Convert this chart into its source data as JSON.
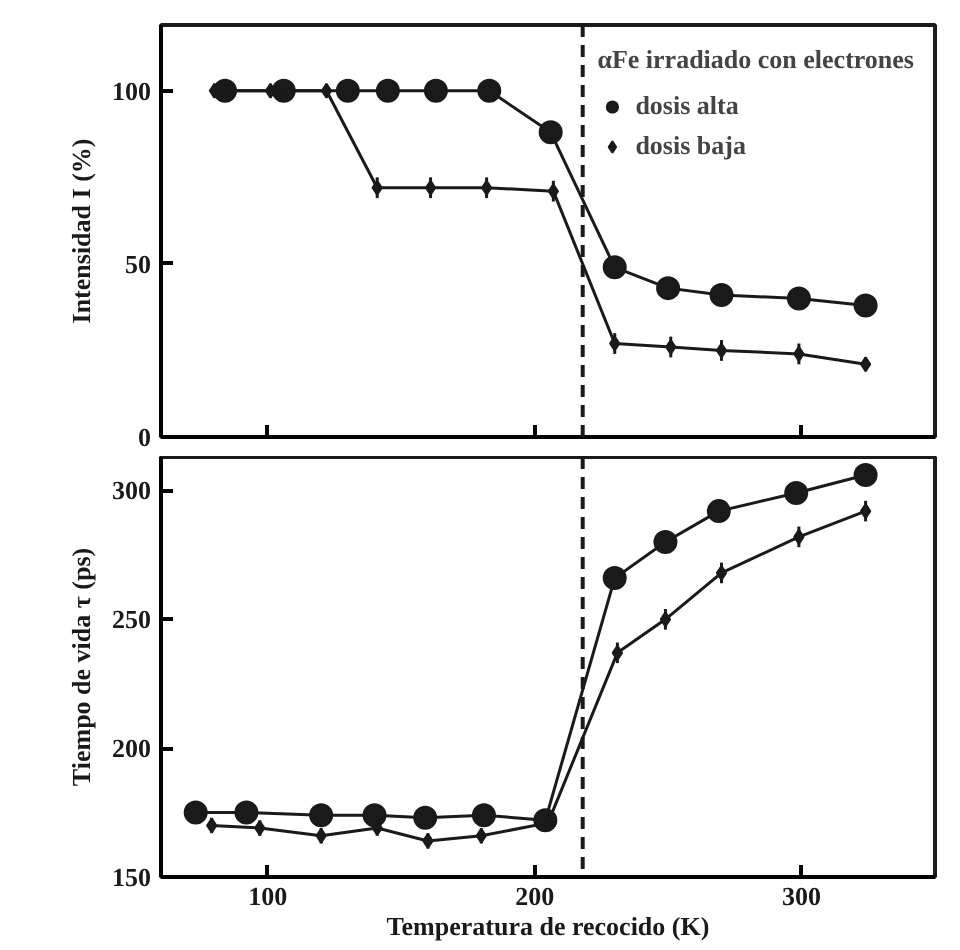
{
  "chart_data": [
    {
      "type": "line",
      "ylabel": "Intensidad I (%)",
      "legend_title": "αFe irradiado con electrones",
      "legend": "top right",
      "tick_labels": "y",
      "line_style": "solid",
      "grid": false,
      "xlim": [
        60,
        350
      ],
      "xticks": [
        {
          "value": 100,
          "label": null
        },
        {
          "value": 200,
          "label": null
        },
        {
          "value": 300,
          "label": null
        }
      ],
      "ylim": [
        0,
        119
      ],
      "yticks": [
        0,
        50,
        100
      ],
      "ref_lines": [
        {
          "axis": "x",
          "value": 218,
          "line_style": "dashed",
          "color": "#1a1a1a"
        }
      ],
      "series": [
        {
          "name": "dosis alta",
          "color": "#1a1a1a",
          "marker": "circle",
          "x": [
            84,
            106,
            130,
            145,
            163,
            183,
            206,
            230,
            250,
            270,
            299,
            324
          ],
          "values": [
            100,
            100,
            100,
            100,
            100,
            100,
            88,
            49,
            43,
            41,
            40,
            38
          ]
        },
        {
          "name": "dosis baja",
          "color": "#1a1a1a",
          "marker": "diamond",
          "x": [
            80,
            101,
            122,
            141,
            161,
            182,
            207,
            230,
            251,
            270,
            299,
            324
          ],
          "values": [
            100,
            100,
            100,
            72,
            72,
            72,
            71,
            27,
            26,
            25,
            24,
            21
          ],
          "errors": [
            2,
            2,
            2,
            3,
            3,
            3,
            3,
            3,
            3,
            3,
            3,
            2
          ]
        }
      ]
    },
    {
      "type": "line",
      "xlabel": "Temperatura de recocido (K)",
      "ylabel": "Tiempo de vida τ (ps)",
      "legend": false,
      "line_style": "solid",
      "grid": false,
      "xlim": [
        60,
        350
      ],
      "xticks": [
        100,
        200,
        300
      ],
      "ylim": [
        150,
        313
      ],
      "yticks": [
        150,
        200,
        250,
        300
      ],
      "ref_lines": [
        {
          "axis": "x",
          "value": 218,
          "line_style": "dashed",
          "color": "#1a1a1a"
        }
      ],
      "series": [
        {
          "color": "#1a1a1a",
          "marker": "circle",
          "x": [
            73,
            92,
            120,
            140,
            159,
            181,
            204,
            230,
            249,
            269,
            298,
            324
          ],
          "values": [
            175,
            175,
            174,
            174,
            173,
            174,
            172,
            266,
            280,
            292,
            299,
            306
          ]
        },
        {
          "color": "#1a1a1a",
          "marker": "diamond",
          "x": [
            79,
            97,
            120,
            141,
            160,
            180,
            205,
            231,
            249,
            270,
            299,
            324
          ],
          "values": [
            170,
            169,
            166,
            169,
            164,
            166,
            171,
            237,
            250,
            268,
            282,
            292
          ],
          "errors": [
            3,
            3,
            3,
            3,
            3,
            3,
            3,
            4,
            4,
            4,
            4,
            4
          ]
        }
      ]
    }
  ]
}
